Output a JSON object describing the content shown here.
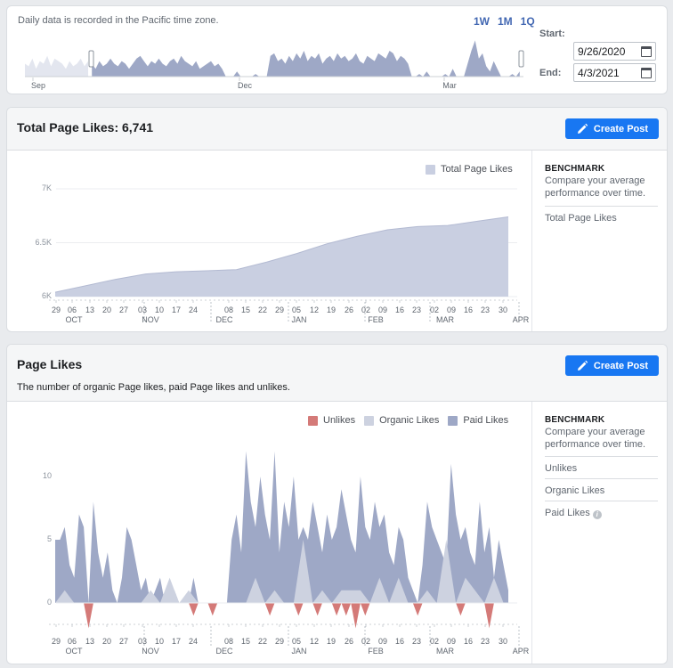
{
  "range": {
    "note": "Daily data is recorded in the Pacific time zone.",
    "periods": [
      "1W",
      "1M",
      "1Q"
    ],
    "start_label": "Start:",
    "end_label": "End:",
    "start_date": "9/26/2020",
    "end_date": "4/3/2021",
    "months": [
      "Sep",
      "Dec",
      "Mar"
    ],
    "brush_values": [
      5,
      4,
      7,
      3,
      6,
      5,
      8,
      4,
      7,
      6,
      5,
      3,
      6,
      4,
      5,
      7,
      4,
      6,
      5,
      3,
      6,
      4,
      5,
      7,
      5,
      4,
      6,
      5,
      3,
      5,
      7,
      8,
      6,
      4,
      6,
      5,
      7,
      5,
      4,
      6,
      7,
      5,
      8,
      6,
      5,
      4,
      6,
      3,
      4,
      5,
      6,
      4,
      5,
      3,
      0,
      0,
      0,
      2,
      0,
      0,
      0,
      0,
      1,
      0,
      0,
      0,
      8,
      9,
      6,
      7,
      5,
      8,
      6,
      9,
      7,
      10,
      6,
      8,
      7,
      9,
      5,
      7,
      8,
      6,
      9,
      7,
      8,
      6,
      7,
      9,
      6,
      5,
      8,
      7,
      6,
      9,
      8,
      7,
      10,
      9,
      6,
      8,
      7,
      5,
      0,
      0,
      1,
      0,
      2,
      0,
      0,
      0,
      0,
      1,
      0,
      3,
      0,
      0,
      0,
      5,
      10,
      14,
      7,
      9,
      4,
      2,
      6,
      3,
      0,
      0,
      0,
      1,
      0,
      2,
      3
    ]
  },
  "total_likes": {
    "title": "Total Page Likes: 6,741",
    "create_label": "Create Post",
    "legend": "Total Page Likes",
    "benchmark_title": "BENCHMARK",
    "benchmark_desc": "Compare your average performance over time.",
    "benchmark_items": [
      "Total Page Likes"
    ]
  },
  "page_likes": {
    "title": "Page Likes",
    "subtitle": "The number of organic Page likes, paid Page likes and unlikes.",
    "create_label": "Create Post",
    "legend": [
      "Unlikes",
      "Organic Likes",
      "Paid Likes"
    ],
    "benchmark_title": "BENCHMARK",
    "benchmark_desc": "Compare your average performance over time.",
    "benchmark_items": [
      "Unlikes",
      "Organic Likes",
      "Paid Likes"
    ]
  },
  "colors": {
    "accent": "#1877f2",
    "total_fill": "#c9cfe1",
    "paid": "#9ea8c6",
    "organic": "#cdd2e0",
    "unlikes": "#d47a78"
  },
  "chart_data": [
    {
      "type": "area",
      "title": "Total Page Likes: 6,741",
      "day_ticks": [
        "29",
        "06",
        "13",
        "20",
        "27",
        "03",
        "10",
        "17",
        "24",
        "08",
        "15",
        "22",
        "29",
        "05",
        "12",
        "19",
        "26",
        "02",
        "09",
        "16",
        "23",
        "02",
        "09",
        "16",
        "23",
        "30"
      ],
      "month_ticks": [
        "OCT",
        "NOV",
        "DEC",
        "JAN",
        "FEB",
        "MAR",
        "APR"
      ],
      "y_ticks": [
        "6K",
        "6.5K",
        "7K"
      ],
      "ylim": [
        6000,
        7000
      ],
      "series": [
        {
          "name": "Total Page Likes",
          "x_days": [
            0,
            14,
            28,
            42,
            56,
            70,
            84,
            98,
            112,
            126,
            140,
            154,
            168,
            182,
            196,
            210
          ],
          "values": [
            6040,
            6100,
            6160,
            6210,
            6230,
            6240,
            6250,
            6320,
            6400,
            6490,
            6560,
            6620,
            6650,
            6660,
            6700,
            6740
          ]
        }
      ]
    },
    {
      "type": "area",
      "title": "Page Likes",
      "day_ticks": [
        "29",
        "06",
        "13",
        "20",
        "27",
        "03",
        "10",
        "17",
        "24",
        "08",
        "15",
        "22",
        "29",
        "05",
        "12",
        "19",
        "26",
        "02",
        "09",
        "16",
        "23",
        "02",
        "09",
        "16",
        "23",
        "30"
      ],
      "month_ticks": [
        "OCT",
        "NOV",
        "DEC",
        "JAN",
        "FEB",
        "MAR",
        "APR"
      ],
      "y_ticks": [
        "0",
        "5",
        "10"
      ],
      "ylim": [
        -2,
        13
      ],
      "series": [
        {
          "name": "Paid Likes",
          "x_days": [
            0,
            2,
            4,
            6,
            8,
            10,
            12,
            14,
            16,
            18,
            20,
            22,
            24,
            26,
            28,
            30,
            32,
            34,
            36,
            38,
            40,
            42,
            44,
            46,
            48,
            50,
            52,
            54,
            56,
            58,
            60,
            62,
            64,
            66,
            68,
            70,
            72,
            74,
            76,
            78,
            80,
            82,
            84,
            86,
            88,
            90,
            92,
            94,
            96,
            98,
            100,
            102,
            104,
            106,
            108,
            110,
            112,
            114,
            116,
            118,
            120,
            122,
            124,
            126,
            128,
            130,
            132,
            134,
            136,
            138,
            140,
            142,
            144,
            146,
            148,
            150,
            152,
            154,
            156,
            158,
            160,
            162,
            164,
            166,
            168,
            170,
            172,
            174,
            176,
            178,
            180,
            182,
            184,
            186,
            188,
            190
          ],
          "values": [
            5,
            5,
            6,
            3,
            2,
            7,
            6,
            0,
            8,
            4,
            2,
            4,
            1,
            0,
            2,
            6,
            5,
            3,
            1,
            2,
            0,
            1,
            2,
            0,
            0,
            1,
            0,
            0,
            0,
            2,
            0,
            0,
            0,
            0,
            0,
            0,
            0,
            5,
            7,
            4,
            12,
            8,
            6,
            10,
            7,
            5,
            12,
            4,
            8,
            6,
            10,
            5,
            6,
            5,
            8,
            6,
            4,
            7,
            5,
            6,
            9,
            7,
            5,
            4,
            10,
            6,
            5,
            8,
            6,
            7,
            4,
            3,
            6,
            5,
            2,
            1,
            0,
            3,
            8,
            6,
            5,
            4,
            3,
            11,
            7,
            5,
            6,
            4,
            3,
            8,
            4,
            6,
            2,
            5,
            3,
            1
          ]
        },
        {
          "name": "Organic Likes",
          "x_days": [
            0,
            4,
            8,
            12,
            16,
            20,
            24,
            28,
            32,
            36,
            40,
            44,
            48,
            52,
            56,
            60,
            64,
            68,
            72,
            76,
            80,
            84,
            88,
            92,
            96,
            100,
            104,
            108,
            112,
            116,
            120,
            124,
            128,
            132,
            136,
            140,
            144,
            148,
            152,
            156,
            160,
            164,
            168,
            172,
            176,
            180,
            184,
            188,
            190
          ],
          "values": [
            0,
            1,
            0,
            0,
            0,
            0,
            0,
            0,
            0,
            0,
            1,
            0,
            2,
            0,
            1,
            0,
            0,
            0,
            0,
            0,
            0,
            2,
            0,
            1,
            0,
            0,
            5,
            0,
            1,
            0,
            1,
            1,
            1,
            0,
            2,
            0,
            2,
            0,
            0,
            1,
            0,
            5,
            0,
            2,
            1,
            0,
            2,
            0,
            0
          ]
        },
        {
          "name": "Unlikes",
          "x_days": [
            0,
            12,
            14,
            16,
            56,
            58,
            60,
            64,
            66,
            68,
            88,
            90,
            92,
            100,
            102,
            104,
            108,
            110,
            112,
            116,
            118,
            120,
            122,
            124,
            126,
            128,
            130,
            132,
            150,
            152,
            154,
            156,
            168,
            170,
            172,
            180,
            182,
            184,
            186
          ],
          "values": [
            0,
            0,
            -2,
            0,
            0,
            -1,
            0,
            0,
            -1,
            0,
            0,
            -1,
            0,
            0,
            -1,
            0,
            0,
            -1,
            0,
            0,
            -1,
            0,
            -1,
            0,
            -2,
            0,
            -1,
            0,
            0,
            -1,
            0,
            0,
            0,
            -1,
            0,
            0,
            -2,
            0,
            0
          ]
        }
      ]
    }
  ]
}
